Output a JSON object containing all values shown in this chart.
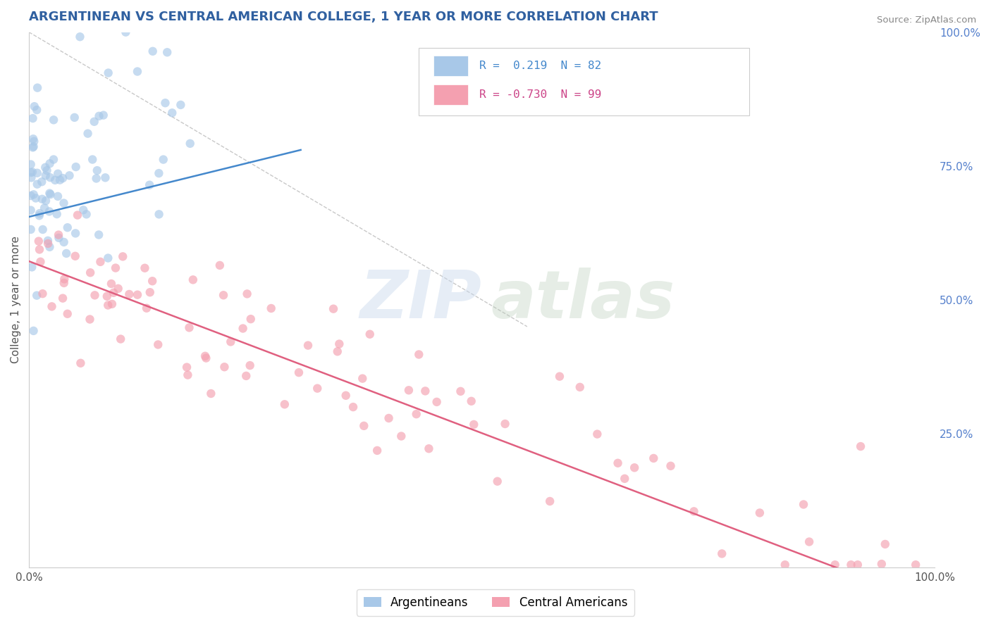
{
  "title": "ARGENTINEAN VS CENTRAL AMERICAN COLLEGE, 1 YEAR OR MORE CORRELATION CHART",
  "source": "Source: ZipAtlas.com",
  "ylabel": "College, 1 year or more",
  "ylabel_right_ticks": [
    "100.0%",
    "75.0%",
    "50.0%",
    "25.0%"
  ],
  "ylabel_right_values": [
    1.0,
    0.75,
    0.5,
    0.25
  ],
  "legend_argentinean": "Argentineans",
  "legend_central": "Central Americans",
  "r_argentinean": 0.219,
  "n_argentinean": 82,
  "r_central": -0.73,
  "n_central": 99,
  "color_blue": "#a8c8e8",
  "color_blue_fill": "#7ab3d8",
  "color_pink": "#f4a0b0",
  "color_pink_fill": "#e87090",
  "color_blue_line": "#4488cc",
  "color_pink_line": "#e06080",
  "background_color": "#ffffff",
  "grid_color": "#d8d8d8",
  "title_color": "#3060a0",
  "source_color": "#888888",
  "watermark_color1": "#c8d4e8",
  "watermark_color2": "#b8c8b8",
  "legend_r_color_blue": "#4488cc",
  "legend_r_color_pink": "#cc4488",
  "legend_n_color": "#4488cc"
}
